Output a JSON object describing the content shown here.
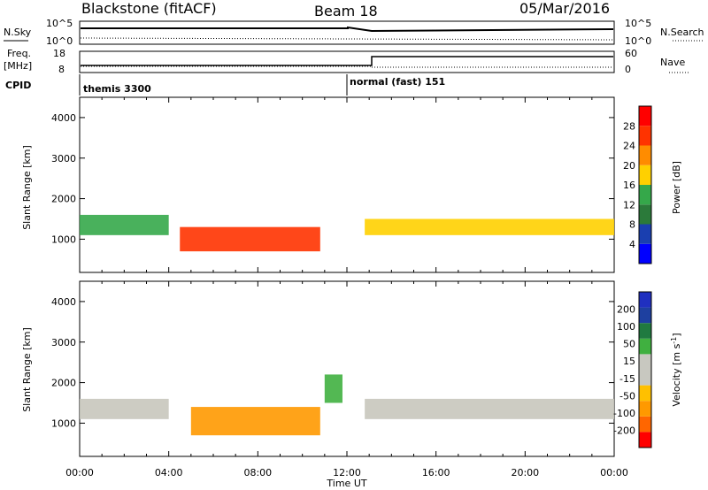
{
  "header": {
    "station": "Blackstone (fitACF)",
    "beam": "Beam 18",
    "date": "05/Mar/2016"
  },
  "top_strip": {
    "left_label": "N.Sky",
    "left_ticks": [
      "10^5",
      "10^0"
    ],
    "right_ticks": [
      "10^5",
      "10^0"
    ],
    "right_label": "N.Search"
  },
  "freq_strip": {
    "left_label_1": "Freq.",
    "left_label_2": "[MHz]",
    "left_ticks": [
      "18",
      "8"
    ],
    "right_ticks": [
      "60",
      "0"
    ],
    "right_label": "Nave"
  },
  "cpid_strip": {
    "label": "CPID",
    "entries": [
      {
        "text": "themis 3300",
        "start_hour": 0
      },
      {
        "text": "normal (fast) 151",
        "start_hour": 12
      }
    ]
  },
  "x_axis": {
    "label": "Time UT",
    "ticks": [
      "00:00",
      "04:00",
      "08:00",
      "12:00",
      "16:00",
      "20:00",
      "00:00"
    ]
  },
  "colors": {
    "power_scale": [
      "#0000ff",
      "#1a3fb0",
      "#2b7a3a",
      "#35a84a",
      "#ffd000",
      "#ff8c00",
      "#ff3300",
      "#ff0000"
    ],
    "velocity_scale": [
      "#ff0000",
      "#ff6600",
      "#ff9900",
      "#ffc000",
      "#c8c8c0",
      "#c8c8c0",
      "#40b040",
      "#207a40",
      "#1e40a0",
      "#2030c0"
    ],
    "ground_scatter": "#c8c6bc"
  },
  "chart_data": [
    {
      "type": "heatmap",
      "panel": "power",
      "ylabel": "Slant Range [km]",
      "xlabel": "Time UT",
      "xlim": [
        0,
        24
      ],
      "ylim": [
        180,
        4500
      ],
      "yticks": [
        1000,
        2000,
        3000,
        4000
      ],
      "colorbar": {
        "label": "Power [dB]",
        "range": [
          0,
          32
        ],
        "ticks": [
          4,
          8,
          12,
          16,
          20,
          24,
          28
        ]
      },
      "features": [
        {
          "name": "main_band_pre",
          "t_start": 0.0,
          "t_end": 4.0,
          "range_low": 1100,
          "range_high": 1600,
          "power": 14
        },
        {
          "name": "main_band_strong",
          "t_start": 4.5,
          "t_end": 10.8,
          "range_low": 700,
          "range_high": 1300,
          "power": 26
        },
        {
          "name": "main_band_post",
          "t_start": 12.8,
          "t_end": 24.0,
          "range_low": 1100,
          "range_high": 1500,
          "power": 18
        }
      ]
    },
    {
      "type": "heatmap",
      "panel": "velocity",
      "ylabel": "Slant Range [km]",
      "xlabel": "Time UT",
      "xlim": [
        0,
        24
      ],
      "ylim": [
        180,
        4500
      ],
      "yticks": [
        1000,
        2000,
        3000,
        4000
      ],
      "colorbar": {
        "label": "Velocity [m s",
        "label_exp": "-1",
        "label_close": "]",
        "labels": [
          "-200",
          "-100",
          "-50",
          "-15",
          "15",
          "50",
          "100",
          "200"
        ]
      },
      "features": [
        {
          "name": "ground_scatter_pre",
          "t_start": 0.0,
          "t_end": 4.0,
          "range_low": 1100,
          "range_high": 1600,
          "velocity": 0
        },
        {
          "name": "negative_velocity_region",
          "t_start": 5.0,
          "t_end": 10.8,
          "range_low": 700,
          "range_high": 1400,
          "velocity": -60
        },
        {
          "name": "ground_scatter_post",
          "t_start": 12.8,
          "t_end": 24.0,
          "range_low": 1100,
          "range_high": 1600,
          "velocity": 0
        },
        {
          "name": "positive_velocity_streak",
          "t_start": 11.0,
          "t_end": 11.8,
          "range_low": 1500,
          "range_high": 2200,
          "velocity": 70
        }
      ]
    }
  ]
}
